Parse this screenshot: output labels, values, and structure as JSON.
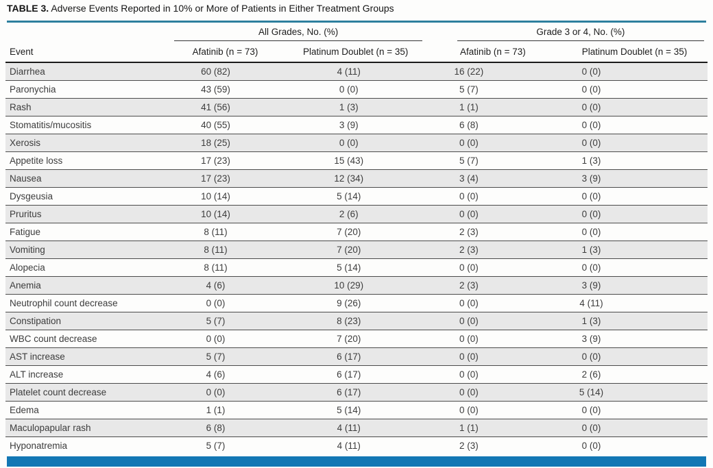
{
  "title": {
    "label": "TABLE 3.",
    "text": "Adverse Events Reported in 10% or More of Patients in Either Treatment Groups"
  },
  "table": {
    "column_groups": [
      {
        "label": "All Grades, No. (%)"
      },
      {
        "label": "Grade 3 or 4, No. (%)"
      }
    ],
    "columns": [
      "Event",
      "Afatinib (n = 73)",
      "Platinum Doublet (n = 35)",
      "Afatinib (n = 73)",
      "Platinum Doublet (n = 35)"
    ],
    "rows": [
      {
        "event": "Diarrhea",
        "values": [
          "60 (82)",
          "4 (11)",
          "16 (22)",
          "0 (0)"
        ]
      },
      {
        "event": "Paronychia",
        "values": [
          "43 (59)",
          "0 (0)",
          "5 (7)",
          "0 (0)"
        ]
      },
      {
        "event": "Rash",
        "values": [
          "41 (56)",
          "1 (3)",
          "1 (1)",
          "0 (0)"
        ]
      },
      {
        "event": "Stomatitis/mucositis",
        "values": [
          "40 (55)",
          "3 (9)",
          "6 (8)",
          "0 (0)"
        ]
      },
      {
        "event": "Xerosis",
        "values": [
          "18 (25)",
          "0 (0)",
          "0 (0)",
          "0 (0)"
        ]
      },
      {
        "event": "Appetite loss",
        "values": [
          "17 (23)",
          "15 (43)",
          "5 (7)",
          "1 (3)"
        ]
      },
      {
        "event": "Nausea",
        "values": [
          "17 (23)",
          "12 (34)",
          "3 (4)",
          "3 (9)"
        ]
      },
      {
        "event": "Dysgeusia",
        "values": [
          "10 (14)",
          "5 (14)",
          "0 (0)",
          "0 (0)"
        ]
      },
      {
        "event": "Pruritus",
        "values": [
          "10 (14)",
          "2 (6)",
          "0 (0)",
          "0 (0)"
        ]
      },
      {
        "event": "Fatigue",
        "values": [
          "8 (11)",
          "7 (20)",
          "2 (3)",
          "0 (0)"
        ]
      },
      {
        "event": "Vomiting",
        "values": [
          "8 (11)",
          "7 (20)",
          "2 (3)",
          "1 (3)"
        ]
      },
      {
        "event": "Alopecia",
        "values": [
          "8 (11)",
          "5 (14)",
          "0 (0)",
          "0 (0)"
        ]
      },
      {
        "event": "Anemia",
        "values": [
          "4 (6)",
          "10 (29)",
          "2 (3)",
          "3 (9)"
        ]
      },
      {
        "event": "Neutrophil count decrease",
        "values": [
          "0 (0)",
          "9 (26)",
          "0 (0)",
          "4 (11)"
        ]
      },
      {
        "event": "Constipation",
        "values": [
          "5 (7)",
          "8 (23)",
          "0 (0)",
          "1 (3)"
        ]
      },
      {
        "event": "WBC count decrease",
        "values": [
          "0 (0)",
          "7 (20)",
          "0 (0)",
          "3 (9)"
        ]
      },
      {
        "event": "AST increase",
        "values": [
          "5 (7)",
          "6 (17)",
          "0 (0)",
          "0 (0)"
        ]
      },
      {
        "event": "ALT increase",
        "values": [
          "4 (6)",
          "6 (17)",
          "0 (0)",
          "2 (6)"
        ]
      },
      {
        "event": "Platelet count decrease",
        "values": [
          "0 (0)",
          "6 (17)",
          "0 (0)",
          "5 (14)"
        ]
      },
      {
        "event": "Edema",
        "values": [
          "1 (1)",
          "5 (14)",
          "0 (0)",
          "0 (0)"
        ]
      },
      {
        "event": "Maculopapular rash",
        "values": [
          "6 (8)",
          "4 (11)",
          "1 (1)",
          "0 (0)"
        ]
      },
      {
        "event": "Hyponatremia",
        "values": [
          "5 (7)",
          "4 (11)",
          "2 (3)",
          "0 (0)"
        ]
      }
    ]
  },
  "colors": {
    "title_rule_teal": "#2d7f9e",
    "bottom_bar_blue": "#1277b4",
    "row_stripe_gray": "#e8e8e8"
  }
}
